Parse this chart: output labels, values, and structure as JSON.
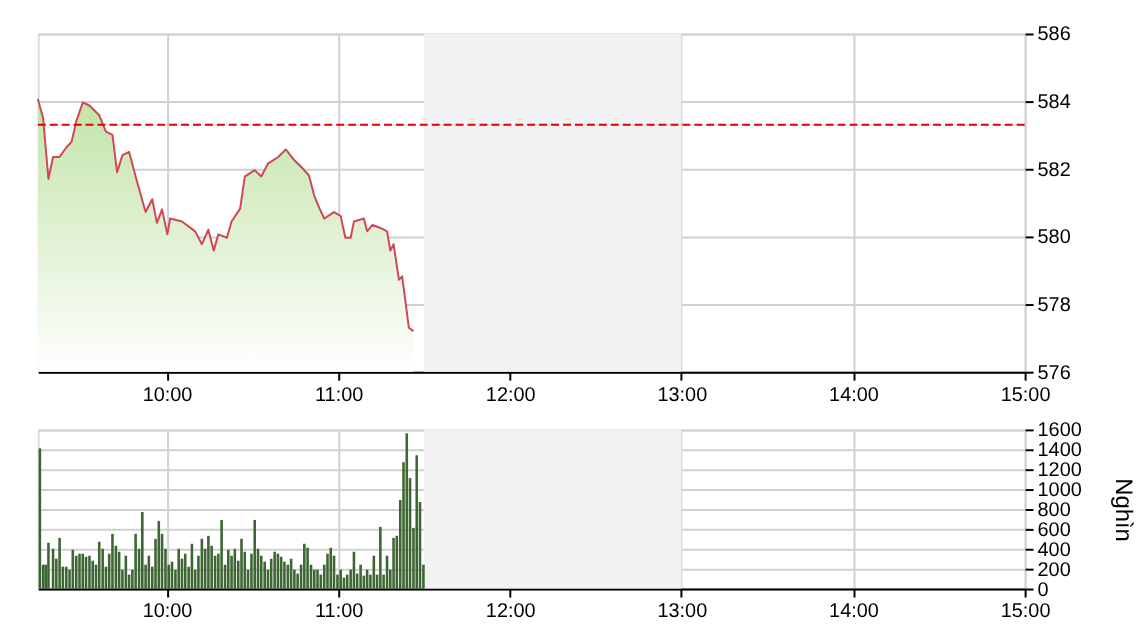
{
  "chart_data": [
    {
      "type": "area",
      "x": [
        9.25,
        9.281,
        9.312,
        9.339,
        9.377,
        9.416,
        9.447,
        9.474,
        9.512,
        9.551,
        9.608,
        9.647,
        9.685,
        9.712,
        9.743,
        9.782,
        9.82,
        9.878,
        9.917,
        9.944,
        9.974,
        10.005,
        10.021,
        10.09,
        10.167,
        10.206,
        10.244,
        10.275,
        10.302,
        10.352,
        10.379,
        10.429,
        10.456,
        10.514,
        10.552,
        10.591,
        10.649,
        10.695,
        10.745,
        10.784,
        10.83,
        10.861,
        10.892,
        10.919,
        10.976,
        11.015,
        11.042,
        11.073,
        11.092,
        11.15,
        11.169,
        11.2,
        11.246,
        11.285,
        11.304,
        11.323,
        11.354,
        11.373,
        11.393,
        11.412,
        11.439
      ],
      "series": [
        {
          "color": "#d04858",
          "values": [
            584.06,
            583.5,
            581.7,
            582.35,
            582.35,
            582.63,
            582.8,
            583.4,
            583.96,
            583.87,
            583.58,
            583.1,
            583.0,
            581.9,
            582.4,
            582.5,
            581.77,
            580.72,
            581.1,
            580.4,
            580.8,
            580.06,
            580.53,
            580.44,
            580.15,
            579.77,
            580.2,
            579.58,
            580.06,
            579.96,
            580.44,
            580.82,
            581.77,
            581.96,
            581.77,
            582.15,
            582.34,
            582.57,
            582.25,
            582.06,
            581.8,
            581.2,
            580.82,
            580.53,
            580.72,
            580.6,
            579.96,
            579.96,
            580.44,
            580.53,
            580.15,
            580.34,
            580.25,
            580.15,
            579.58,
            579.77,
            578.72,
            578.82,
            578.05,
            577.3,
            577.2
          ]
        }
      ],
      "xlim": [
        9.25,
        15
      ],
      "xticks": [
        {
          "value": 10,
          "label": "10:00"
        },
        {
          "value": 11,
          "label": "11:00"
        },
        {
          "value": 12,
          "label": "12:00"
        },
        {
          "value": 13,
          "label": "13:00"
        },
        {
          "value": 14,
          "label": "14:00"
        },
        {
          "value": 15,
          "label": "15:00"
        }
      ],
      "ylim": [
        576,
        586
      ],
      "yticks": [
        576,
        578,
        580,
        582,
        584,
        586
      ],
      "grid": true,
      "ref_lines": [
        {
          "axis": "y",
          "value": 583.3,
          "color": "#e00000",
          "line_style": "dashed"
        }
      ],
      "bands": [
        {
          "axis": "x",
          "from": 11.5,
          "to": 13,
          "color": "#f2f2f2"
        }
      ]
    },
    {
      "type": "bar",
      "x": [
        9.262,
        9.281,
        9.296,
        9.312,
        9.339,
        9.358,
        9.377,
        9.396,
        9.416,
        9.435,
        9.454,
        9.474,
        9.493,
        9.512,
        9.531,
        9.551,
        9.57,
        9.589,
        9.608,
        9.628,
        9.647,
        9.666,
        9.685,
        9.705,
        9.724,
        9.743,
        9.763,
        9.782,
        9.801,
        9.82,
        9.84,
        9.859,
        9.878,
        9.897,
        9.917,
        9.936,
        9.955,
        9.974,
        9.994,
        10.013,
        10.032,
        10.052,
        10.071,
        10.09,
        10.109,
        10.129,
        10.148,
        10.167,
        10.186,
        10.206,
        10.225,
        10.244,
        10.263,
        10.283,
        10.302,
        10.321,
        10.341,
        10.36,
        10.379,
        10.398,
        10.418,
        10.437,
        10.456,
        10.475,
        10.495,
        10.514,
        10.533,
        10.552,
        10.572,
        10.591,
        10.61,
        10.63,
        10.649,
        10.668,
        10.687,
        10.707,
        10.726,
        10.745,
        10.764,
        10.784,
        10.803,
        10.822,
        10.842,
        10.861,
        10.88,
        10.899,
        10.919,
        10.938,
        10.957,
        10.976,
        10.996,
        11.015,
        11.034,
        11.053,
        11.073,
        11.092,
        11.111,
        11.131,
        11.15,
        11.169,
        11.188,
        11.208,
        11.227,
        11.246,
        11.265,
        11.285,
        11.304,
        11.323,
        11.342,
        11.362,
        11.381,
        11.4,
        11.419,
        11.439,
        11.458,
        11.477,
        11.497
      ],
      "series": [
        {
          "color": "#3d6633",
          "values": [
            1410,
            240,
            240,
            460,
            400,
            300,
            510,
            220,
            220,
            190,
            390,
            330,
            350,
            350,
            320,
            330,
            280,
            240,
            470,
            400,
            220,
            350,
            550,
            430,
            370,
            190,
            330,
            140,
            190,
            550,
            400,
            770,
            240,
            330,
            220,
            500,
            680,
            550,
            400,
            240,
            270,
            190,
            400,
            300,
            350,
            220,
            450,
            190,
            330,
            500,
            400,
            530,
            430,
            330,
            350,
            690,
            240,
            390,
            330,
            400,
            280,
            500,
            370,
            190,
            350,
            690,
            400,
            330,
            270,
            190,
            300,
            370,
            350,
            320,
            270,
            240,
            300,
            190,
            150,
            240,
            450,
            410,
            240,
            190,
            190,
            140,
            240,
            350,
            410,
            330,
            140,
            190,
            110,
            140,
            190,
            370,
            150,
            240,
            130,
            190,
            140,
            330,
            140,
            620,
            140,
            330,
            190,
            510,
            530,
            890,
            1270,
            1560,
            1110,
            610,
            1340,
            870,
            240
          ]
        }
      ],
      "ylabel": "Nghìn",
      "xlim": [
        9.25,
        15
      ],
      "xticks": [
        {
          "value": 10,
          "label": "10:00"
        },
        {
          "value": 11,
          "label": "11:00"
        },
        {
          "value": 12,
          "label": "12:00"
        },
        {
          "value": 13,
          "label": "13:00"
        },
        {
          "value": 14,
          "label": "14:00"
        },
        {
          "value": 15,
          "label": "15:00"
        }
      ],
      "ylim": [
        0,
        1600
      ],
      "yticks": [
        0,
        200,
        400,
        600,
        800,
        1000,
        1200,
        1400,
        1600
      ],
      "grid": true,
      "bands": [
        {
          "axis": "x",
          "from": 11.5,
          "to": 13,
          "color": "#f2f2f2"
        }
      ]
    }
  ]
}
